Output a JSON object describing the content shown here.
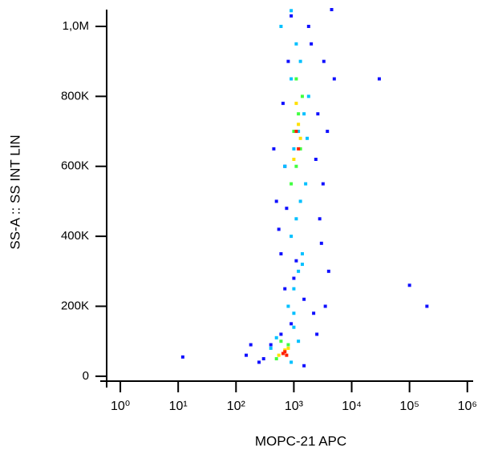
{
  "chart_data": {
    "type": "scatter",
    "xlabel": "MOPC-21  APC",
    "ylabel": "SS-A :: SS INT LIN",
    "xscale": "log",
    "xlim": [
      0.58,
      1260000
    ],
    "ylim": [
      -14000,
      1048000
    ],
    "xticks": [
      {
        "value": 1,
        "label": "10⁰"
      },
      {
        "value": 10,
        "label": "10¹"
      },
      {
        "value": 100,
        "label": "10²"
      },
      {
        "value": 1000,
        "label": "10³"
      },
      {
        "value": 10000,
        "label": "10⁴"
      },
      {
        "value": 100000,
        "label": "10⁵"
      },
      {
        "value": 1000000,
        "label": "10⁶"
      }
    ],
    "yticks": [
      0,
      {
        "value": 200000,
        "label": "200K"
      },
      {
        "value": 400000,
        "label": "400K"
      },
      {
        "value": 600000,
        "label": "600K"
      },
      {
        "value": 800000,
        "label": "800K"
      },
      {
        "value": 1000000,
        "label": "1,0M"
      }
    ],
    "series": [
      {
        "color": "#1010ff",
        "x": [
          300,
          400,
          250,
          1500,
          2500,
          3500,
          4000,
          900,
          700,
          600,
          2800,
          3200,
          500,
          450,
          3800,
          5000,
          2000,
          800,
          650,
          1800,
          2200,
          3000,
          550,
          700,
          1000,
          1500,
          2600,
          900,
          1100,
          3300,
          12,
          150,
          180,
          30000,
          100000,
          200000,
          600,
          750,
          2400,
          4500
        ],
        "values": [
          50000,
          90000,
          40000,
          30000,
          120000,
          200000,
          300000,
          150000,
          250000,
          350000,
          450000,
          550000,
          500000,
          650000,
          700000,
          850000,
          950000,
          900000,
          780000,
          1000000,
          180000,
          380000,
          420000,
          600000,
          280000,
          220000,
          750000,
          1030000,
          330000,
          900000,
          55000,
          60000,
          90000,
          850000,
          260000,
          200000,
          120000,
          480000,
          620000,
          1048000
        ]
      },
      {
        "color": "#00c0ff",
        "x": [
          800,
          1000,
          1200,
          1400,
          900,
          1100,
          1300,
          1600,
          700,
          1000,
          1200,
          1500,
          1800,
          900,
          1300,
          1100,
          600,
          900,
          1400,
          1000,
          400,
          500,
          900,
          1200,
          1000,
          1700
        ],
        "values": [
          200000,
          250000,
          300000,
          350000,
          400000,
          450000,
          500000,
          550000,
          600000,
          650000,
          700000,
          750000,
          800000,
          850000,
          900000,
          950000,
          1000000,
          1045000,
          320000,
          180000,
          80000,
          110000,
          40000,
          100000,
          140000,
          680000
        ]
      },
      {
        "color": "#40ff40",
        "x": [
          900,
          1100,
          1300,
          1000,
          1200,
          1400,
          1100,
          800,
          600,
          500
        ],
        "values": [
          550000,
          600000,
          650000,
          700000,
          750000,
          800000,
          850000,
          90000,
          100000,
          50000
        ]
      },
      {
        "color": "#ffe000",
        "x": [
          1000,
          1300,
          1200,
          1100,
          800,
          550,
          700
        ],
        "values": [
          620000,
          680000,
          720000,
          780000,
          80000,
          60000,
          75000
        ]
      },
      {
        "color": "#ff2000",
        "x": [
          1200,
          1100,
          650,
          750,
          700
        ],
        "values": [
          650000,
          700000,
          65000,
          60000,
          70000
        ]
      }
    ]
  }
}
